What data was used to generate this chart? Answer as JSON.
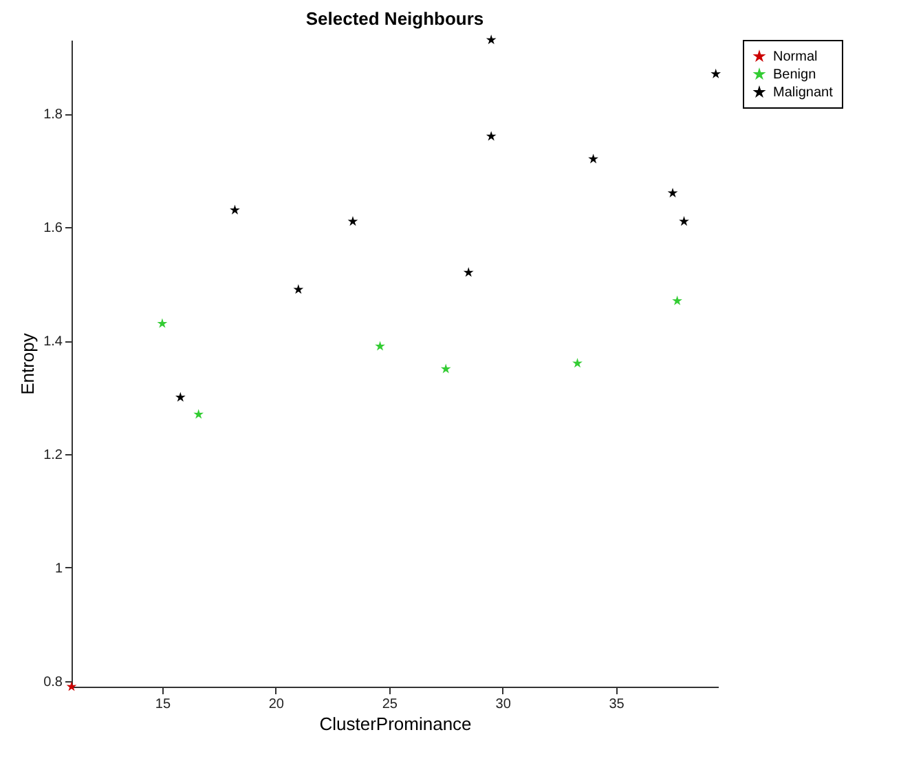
{
  "chart_data": {
    "type": "scatter",
    "title": "Selected Neighbours",
    "xlabel": "ClusterProminance",
    "ylabel": "Entropy",
    "xlim": [
      11,
      39.5
    ],
    "ylim": [
      0.79,
      1.93
    ],
    "xticks": [
      15,
      20,
      25,
      30,
      35
    ],
    "yticks": [
      0.8,
      1,
      1.2,
      1.4,
      1.6,
      1.8
    ],
    "legend": "right",
    "marker": "star",
    "grid": false,
    "series": [
      {
        "name": "Normal",
        "color": "#cc0000",
        "x": [
          11.0
        ],
        "values": [
          0.79
        ]
      },
      {
        "name": "Benign",
        "color": "#33cc33",
        "x": [
          15.0,
          16.6,
          24.6,
          27.5,
          33.3,
          37.7
        ],
        "values": [
          1.43,
          1.27,
          1.39,
          1.35,
          1.36,
          1.47
        ]
      },
      {
        "name": "Malignant",
        "color": "#000000",
        "x": [
          15.8,
          18.2,
          21.0,
          23.4,
          28.5,
          29.5,
          29.5,
          34.0,
          37.5,
          38.0,
          39.4
        ],
        "values": [
          1.3,
          1.63,
          1.49,
          1.61,
          1.52,
          1.93,
          1.76,
          1.72,
          1.66,
          1.61,
          1.87
        ]
      }
    ]
  }
}
